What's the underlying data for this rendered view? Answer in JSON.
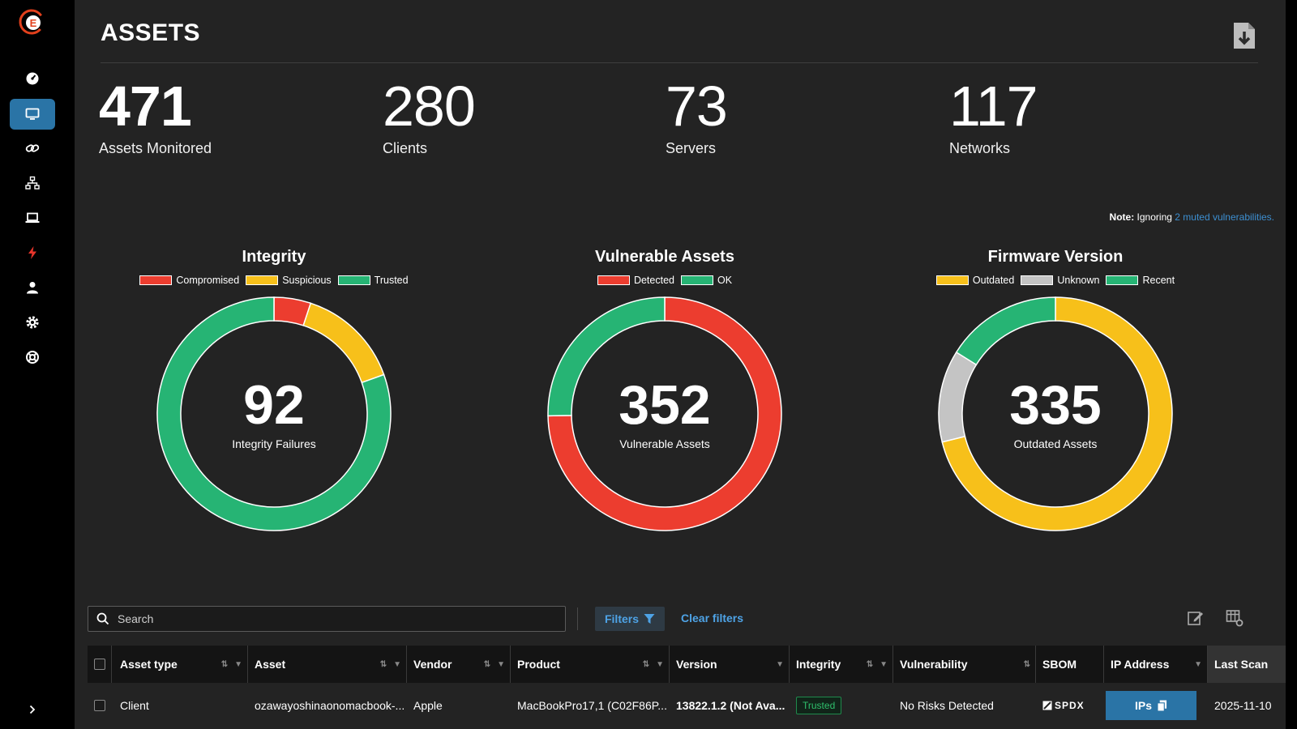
{
  "page": {
    "title": "ASSETS"
  },
  "stats": [
    {
      "value": "471",
      "label": "Assets Monitored"
    },
    {
      "value": "280",
      "label": "Clients"
    },
    {
      "value": "73",
      "label": "Servers"
    },
    {
      "value": "117",
      "label": "Networks"
    }
  ],
  "note": {
    "prefix": "Note:",
    "text": " Ignoring ",
    "link": "2 muted vulnerabilities."
  },
  "charts": {
    "integrity": {
      "title": "Integrity",
      "legend": [
        "Compromised",
        "Suspicious",
        "Trusted"
      ],
      "center_value": "92",
      "center_label": "Integrity Failures"
    },
    "vulnerable": {
      "title": "Vulnerable Assets",
      "legend": [
        "Detected",
        "OK"
      ],
      "center_value": "352",
      "center_label": "Vulnerable Assets"
    },
    "firmware": {
      "title": "Firmware Version",
      "legend": [
        "Outdated",
        "Unknown",
        "Recent"
      ],
      "center_value": "335",
      "center_label": "Outdated Assets"
    }
  },
  "chart_data": [
    {
      "type": "pie",
      "title": "Integrity",
      "categories": [
        "Compromised",
        "Suspicious",
        "Trusted"
      ],
      "values": [
        24,
        68,
        379
      ],
      "colors": [
        "#ec3d2f",
        "#f7c01a",
        "#26b474"
      ]
    },
    {
      "type": "pie",
      "title": "Vulnerable Assets",
      "categories": [
        "Detected",
        "OK"
      ],
      "values": [
        352,
        119
      ],
      "colors": [
        "#ec3d2f",
        "#26b474"
      ]
    },
    {
      "type": "pie",
      "title": "Firmware Version",
      "categories": [
        "Outdated",
        "Unknown",
        "Recent"
      ],
      "values": [
        335,
        60,
        76
      ],
      "colors": [
        "#f7c01a",
        "#c4c4c4",
        "#26b474"
      ]
    }
  ],
  "toolbar": {
    "search_placeholder": "Search",
    "filters_label": "Filters",
    "clear_filters_label": "Clear filters"
  },
  "table": {
    "columns": [
      "Asset type",
      "Asset",
      "Vendor",
      "Product",
      "Version",
      "Integrity",
      "Vulnerability",
      "SBOM",
      "IP Address",
      "Last Scan"
    ],
    "rows": [
      {
        "asset_type": "Client",
        "asset": "ozawayoshinaonomacbook-...",
        "vendor": "Apple",
        "product": "MacBookPro17,1 (C02F86P...",
        "version": "13822.1.2 (Not Ava...",
        "integrity": "Trusted",
        "vulnerability": "No Risks Detected",
        "sbom": "SPDX",
        "ip_button": "IPs",
        "last_scan": "2025-11-10"
      }
    ]
  },
  "icons": {
    "nav": [
      "dashboard-icon",
      "monitor-icon",
      "link-icon",
      "network-icon",
      "laptop-icon",
      "bolt-icon",
      "user-icon",
      "gear-icon",
      "lifebuoy-icon"
    ]
  }
}
